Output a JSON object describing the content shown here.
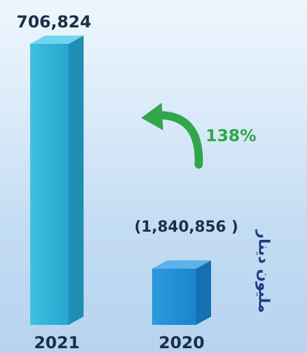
{
  "chart_data": {
    "type": "bar",
    "categories": [
      "2021",
      "2020"
    ],
    "values": [
      706824,
      -1840856
    ],
    "value_labels": [
      "706,824",
      "(1,840,856 )"
    ],
    "annotation": "138%",
    "unit_label": "مليون دينار",
    "title": "",
    "xlabel": "",
    "ylabel": "",
    "grid": false,
    "legend": "none"
  },
  "colors": {
    "bar_2021_front": "#2fb4d8",
    "bar_2021_side": "#1f8fb4",
    "bar_2021_top": "#6fd6ef",
    "bar_2020_front": "#1e8fd6",
    "bar_2020_side": "#1570b4",
    "bar_2020_top": "#5bb3ea",
    "value_text": "#1d2e4a",
    "axis_text": "#1d2e4a",
    "arrow": "#2fa84a",
    "percent_text": "#2fa84a",
    "unit_text": "#1d3a86"
  },
  "icons": {
    "arrow": "curved-up-left-arrow"
  }
}
